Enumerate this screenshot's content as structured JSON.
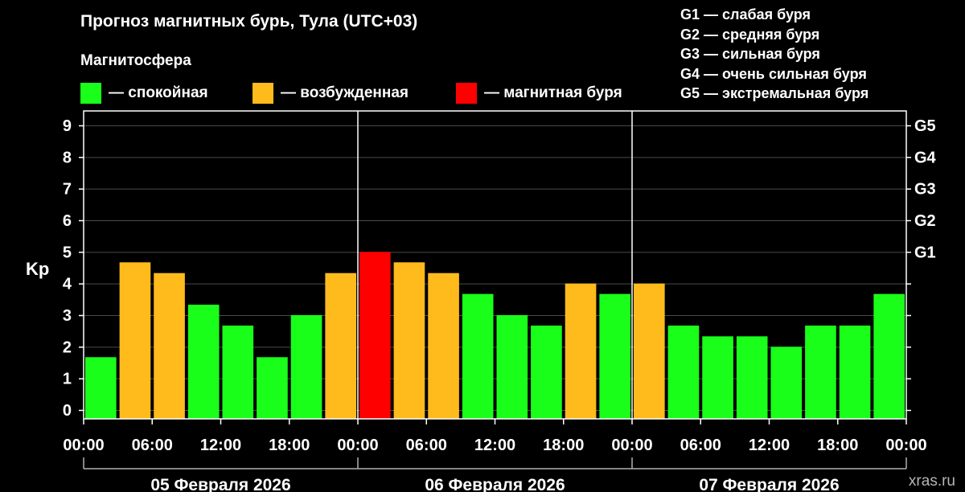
{
  "title": "Прогноз магнитных бурь, Тула (UTC+03)",
  "subtitle": "Магнитосфера",
  "legend": [
    {
      "label": "— спокойная",
      "color": "#1aff1a"
    },
    {
      "label": "— возбужденная",
      "color": "#ffbb1c"
    },
    {
      "label": "— магнитная буря",
      "color": "#ff0000"
    }
  ],
  "storm_scale": [
    "G1 — слабая буря",
    "G2 — средняя буря",
    "G3 — сильная буря",
    "G4 — очень сильная буря",
    "G5 — экстремальная буря"
  ],
  "watermark": "xras.ru",
  "chart_data": {
    "type": "bar",
    "ylabel": "Kp",
    "ylim": [
      0,
      9
    ],
    "y_ticks": [
      0,
      1,
      2,
      3,
      4,
      5,
      6,
      7,
      8,
      9
    ],
    "right_axis_labels": [
      {
        "value": 5,
        "label": "G1"
      },
      {
        "value": 6,
        "label": "G2"
      },
      {
        "value": 7,
        "label": "G3"
      },
      {
        "value": 8,
        "label": "G4"
      },
      {
        "value": 9,
        "label": "G5"
      }
    ],
    "x_tick_labels": [
      "00:00",
      "06:00",
      "12:00",
      "18:00",
      "00:00",
      "06:00",
      "12:00",
      "18:00",
      "00:00",
      "06:00",
      "12:00",
      "18:00",
      "00:00"
    ],
    "days": [
      "05 Февраля 2026",
      "06 Февраля 2026",
      "07 Февраля 2026"
    ],
    "interval_hours": 3,
    "values": [
      1.67,
      4.67,
      4.33,
      3.33,
      2.67,
      1.67,
      3.0,
      4.33,
      5.0,
      4.67,
      4.33,
      3.67,
      3.0,
      2.67,
      4.0,
      3.67,
      4.0,
      2.67,
      2.33,
      2.33,
      2.0,
      2.67,
      2.67,
      3.67
    ],
    "colors": {
      "quiet": "#1aff1a",
      "active": "#ffbb1c",
      "storm": "#ff0000"
    },
    "grid": true
  }
}
